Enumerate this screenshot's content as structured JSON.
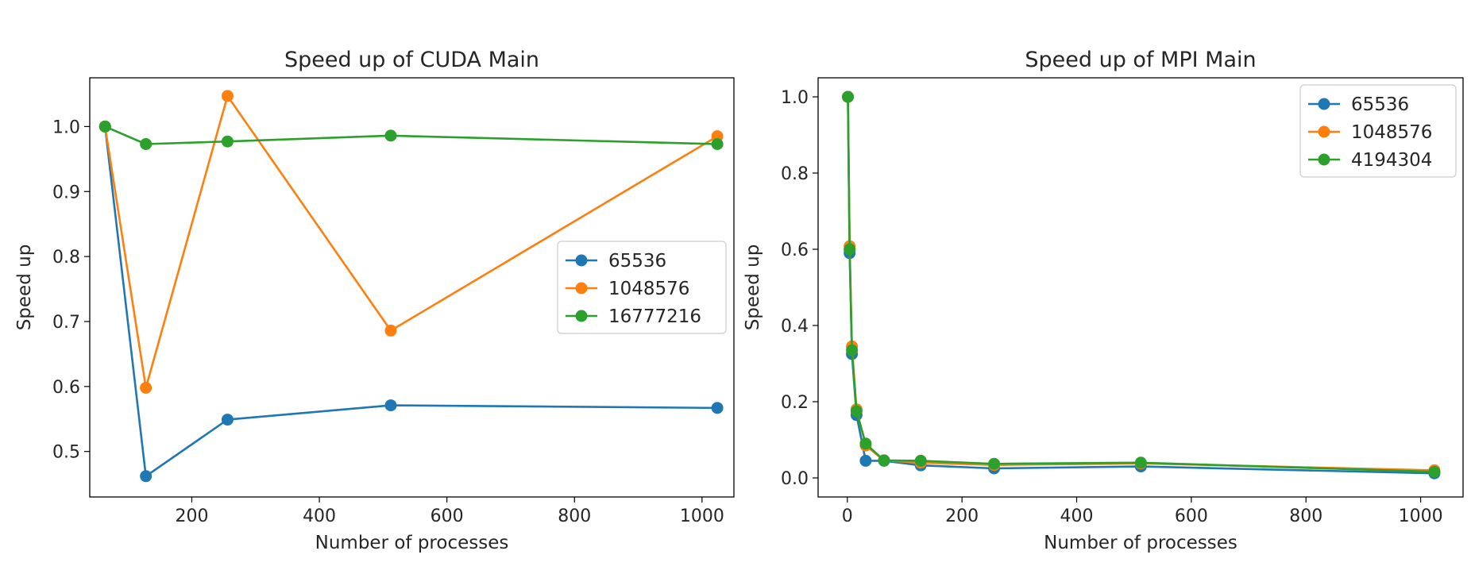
{
  "chart_data": [
    {
      "type": "line",
      "title": "Speed up of CUDA Main",
      "xlabel": "Number of processes",
      "ylabel": "Speed up",
      "xlim": [
        40,
        1050
      ],
      "ylim": [
        0.43,
        1.075
      ],
      "xticks": [
        200,
        400,
        600,
        800,
        1000
      ],
      "yticks": [
        0.5,
        0.6,
        0.7,
        0.8,
        0.9,
        1.0
      ],
      "xtick_labels": [
        "200",
        "400",
        "600",
        "800",
        "1000"
      ],
      "ytick_labels": [
        "0.5",
        "0.6",
        "0.7",
        "0.8",
        "0.9",
        "1.0"
      ],
      "legend_position": "center-right",
      "x": [
        64,
        128,
        256,
        512,
        1024
      ],
      "series": [
        {
          "name": "65536",
          "color": "#1f77b4",
          "values": [
            1.0,
            0.462,
            0.549,
            0.571,
            0.567
          ]
        },
        {
          "name": "1048576",
          "color": "#ff7f0e",
          "values": [
            1.0,
            0.598,
            1.047,
            0.686,
            0.985
          ]
        },
        {
          "name": "16777216",
          "color": "#2ca02c",
          "values": [
            1.0,
            0.973,
            0.977,
            0.986,
            0.973
          ]
        }
      ]
    },
    {
      "type": "line",
      "title": "Speed up of MPI Main",
      "xlabel": "Number of processes",
      "ylabel": "Speed up",
      "xlim": [
        -51,
        1074
      ],
      "ylim": [
        -0.05,
        1.05
      ],
      "xticks": [
        0,
        200,
        400,
        600,
        800,
        1000
      ],
      "yticks": [
        0.0,
        0.2,
        0.4,
        0.6,
        0.8,
        1.0
      ],
      "xtick_labels": [
        "0",
        "200",
        "400",
        "600",
        "800",
        "1000"
      ],
      "ytick_labels": [
        "0.0",
        "0.2",
        "0.4",
        "0.6",
        "0.8",
        "1.0"
      ],
      "legend_position": "top-right",
      "x": [
        1,
        4,
        8,
        16,
        32,
        64,
        128,
        256,
        512,
        1024
      ],
      "series": [
        {
          "name": "65536",
          "color": "#1f77b4",
          "values": [
            1.0,
            0.59,
            0.325,
            0.165,
            0.045,
            0.045,
            0.033,
            0.025,
            0.03,
            0.012
          ]
        },
        {
          "name": "1048576",
          "color": "#ff7f0e",
          "values": [
            1.0,
            0.608,
            0.345,
            0.18,
            0.085,
            0.046,
            0.04,
            0.034,
            0.038,
            0.02
          ]
        },
        {
          "name": "4194304",
          "color": "#2ca02c",
          "values": [
            1.0,
            0.6,
            0.335,
            0.175,
            0.09,
            0.046,
            0.045,
            0.037,
            0.04,
            0.016
          ]
        }
      ]
    }
  ]
}
